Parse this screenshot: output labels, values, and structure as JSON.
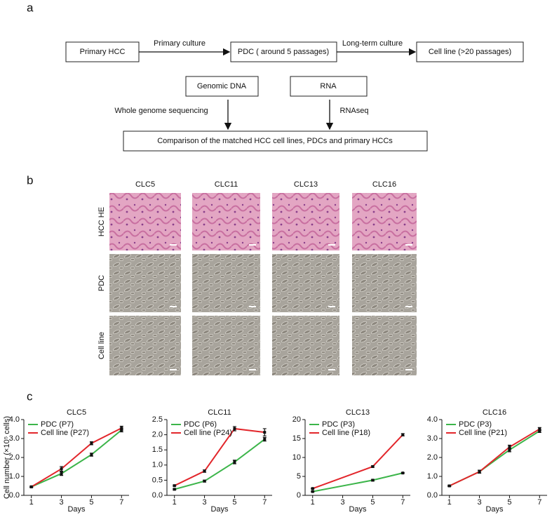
{
  "panels": {
    "a": "a",
    "b": "b",
    "c": "c"
  },
  "diagram": {
    "nodes": [
      "Primary HCC",
      "PDC ( around 5 passages)",
      "Cell line (>20 passages)",
      "Genomic DNA",
      "RNA",
      "Comparison of the matched HCC cell lines, PDCs and primary HCCs"
    ],
    "edges": [
      "Primary culture",
      "Long-term culture",
      "Whole genome sequencing",
      "RNAseq"
    ]
  },
  "images": {
    "columns": [
      "CLC5",
      "CLC11",
      "CLC13",
      "CLC16"
    ],
    "rows": [
      "HCC HE",
      "PDC",
      "Cell line"
    ]
  },
  "chart_data": [
    {
      "type": "line",
      "title": "CLC5",
      "xlabel": "Days",
      "ylabel": "Cell number (×10⁵ cells)",
      "x": [
        1,
        3,
        5,
        7
      ],
      "xlim": [
        0.5,
        7.5
      ],
      "xticks": [
        1,
        3,
        5,
        7
      ],
      "ylim": [
        0,
        4
      ],
      "yticks": [
        {
          "value": 0,
          "label": "0.0"
        },
        {
          "value": 1,
          "label": "1.0"
        },
        {
          "value": 2,
          "label": "2.0"
        },
        {
          "value": 3,
          "label": "3.0"
        },
        {
          "value": 4,
          "label": "4.0"
        }
      ],
      "series": [
        {
          "name": "PDC (P7)",
          "color": "#3cb54a",
          "values": [
            0.45,
            1.15,
            2.15,
            3.45
          ],
          "errors": [
            0.03,
            0.1,
            0.08,
            0.1
          ]
        },
        {
          "name": "Cell line (P27)",
          "color": "#e2262b",
          "values": [
            0.45,
            1.4,
            2.75,
            3.55
          ],
          "errors": [
            0.03,
            0.12,
            0.08,
            0.1
          ]
        }
      ]
    },
    {
      "type": "line",
      "title": "CLC11",
      "xlabel": "Days",
      "x": [
        1,
        3,
        5,
        7
      ],
      "xlim": [
        0.5,
        7.5
      ],
      "xticks": [
        1,
        3,
        5,
        7
      ],
      "ylim": [
        0,
        2.5
      ],
      "yticks": [
        {
          "value": 0,
          "label": "0.0"
        },
        0.5,
        {
          "value": 1,
          "label": "1.0"
        },
        1.5,
        {
          "value": 2,
          "label": "2.0"
        },
        2.5
      ],
      "series": [
        {
          "name": "PDC (P6)",
          "color": "#3cb54a",
          "values": [
            0.2,
            0.47,
            1.1,
            1.85
          ],
          "errors": [
            0.02,
            0.03,
            0.06,
            0.06
          ]
        },
        {
          "name": "Cell line (P24)",
          "color": "#e2262b",
          "values": [
            0.32,
            0.8,
            2.2,
            2.08
          ],
          "errors": [
            0.02,
            0.04,
            0.07,
            0.12
          ]
        }
      ]
    },
    {
      "type": "line",
      "title": "CLC13",
      "xlabel": "Days",
      "x": [
        1,
        5,
        7
      ],
      "xlim": [
        0.5,
        7.5
      ],
      "xticks": [
        1,
        3,
        5,
        7
      ],
      "ylim": [
        0,
        20
      ],
      "yticks": [
        0,
        5,
        10,
        15,
        20
      ],
      "series": [
        {
          "name": "PDC (P3)",
          "color": "#3cb54a",
          "values": [
            1.0,
            4.0,
            5.9
          ],
          "errors": [
            0.1,
            0.2,
            0.1
          ]
        },
        {
          "name": "Cell line (P18)",
          "color": "#e2262b",
          "values": [
            1.8,
            7.6,
            16.0
          ],
          "errors": [
            0.1,
            0.2,
            0.3
          ]
        }
      ]
    },
    {
      "type": "line",
      "title": "CLC16",
      "xlabel": "Days",
      "x": [
        1,
        3,
        5,
        7
      ],
      "xlim": [
        0.5,
        7.5
      ],
      "xticks": [
        1,
        3,
        5,
        7
      ],
      "ylim": [
        0,
        4
      ],
      "yticks": [
        {
          "value": 0,
          "label": "0.0"
        },
        {
          "value": 1,
          "label": "1.0"
        },
        {
          "value": 2,
          "label": "2.0"
        },
        {
          "value": 3,
          "label": "3.0"
        },
        {
          "value": 4,
          "label": "4.0"
        }
      ],
      "series": [
        {
          "name": "PDC (P3)",
          "color": "#3cb54a",
          "values": [
            0.5,
            1.25,
            2.4,
            3.4
          ],
          "errors": [
            0.03,
            0.08,
            0.1,
            0.08
          ]
        },
        {
          "name": "Cell line (P21)",
          "color": "#e2262b",
          "values": [
            0.5,
            1.25,
            2.55,
            3.5
          ],
          "errors": [
            0.03,
            0.08,
            0.1,
            0.08
          ]
        }
      ]
    }
  ]
}
